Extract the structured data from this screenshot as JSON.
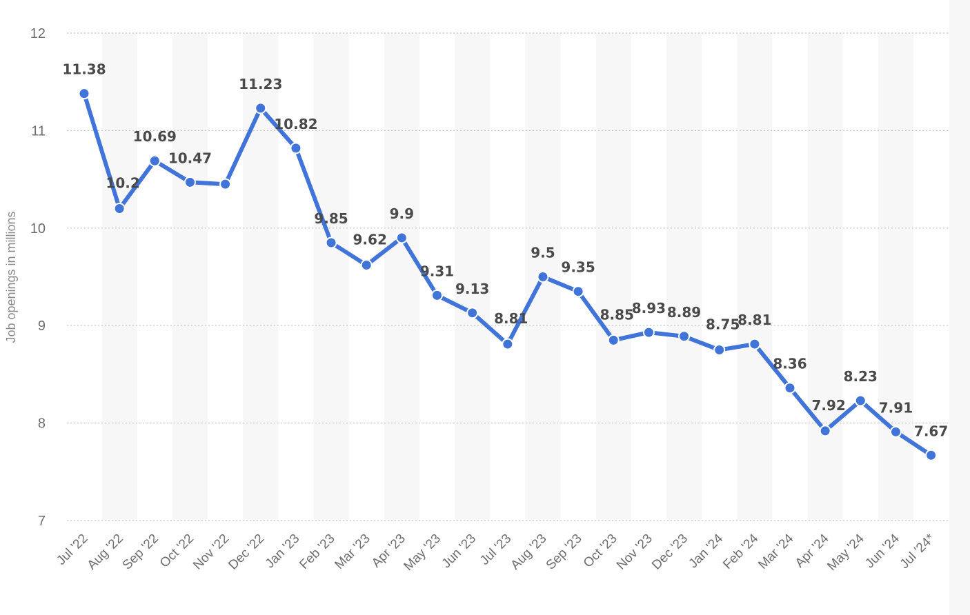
{
  "chart_data": {
    "type": "line",
    "title": "",
    "xlabel": "",
    "ylabel": "Job openings in millions",
    "ylim": [
      7,
      12
    ],
    "yticks": [
      7,
      8,
      9,
      10,
      11,
      12
    ],
    "grid": true,
    "categories": [
      "Jul '22",
      "Aug '22",
      "Sep '22",
      "Oct '22",
      "Nov '22",
      "Dec '22",
      "Jan '23",
      "Feb '23",
      "Mar '23",
      "Apr '23",
      "May '23",
      "Jun '23",
      "Jul '23",
      "Aug '23",
      "Sep '23",
      "Oct '23",
      "Nov '23",
      "Dec '23",
      "Jan '24",
      "Feb '24",
      "Mar '24",
      "Apr '24",
      "May '24",
      "Jun '24",
      "Jul '24*"
    ],
    "series": [
      {
        "values": [
          11.38,
          10.2,
          10.69,
          10.47,
          10.45,
          11.23,
          10.82,
          9.85,
          9.62,
          9.9,
          9.31,
          9.13,
          8.81,
          9.5,
          9.35,
          8.85,
          8.93,
          8.89,
          8.75,
          8.81,
          8.36,
          7.92,
          8.23,
          7.91,
          7.67
        ],
        "labels": [
          "11.38",
          "10.2",
          "10.69",
          "10.47",
          "",
          "11.23",
          "10.82",
          "9.85",
          "9.62",
          "9.9",
          "9.31",
          "9.13",
          "8.81",
          "9.5",
          "9.35",
          "8.85",
          "8.93",
          "8.89",
          "8.75",
          "8.81",
          "8.36",
          "7.92",
          "8.23",
          "7.91",
          "7.67"
        ],
        "color": "#4174d9"
      }
    ],
    "colors": {
      "line": "#4174d9",
      "grid": "#c4c4c4",
      "band": "#f7f7f7",
      "tick_text": "#6e6e6e",
      "label_text": "#4a4a4a"
    }
  }
}
